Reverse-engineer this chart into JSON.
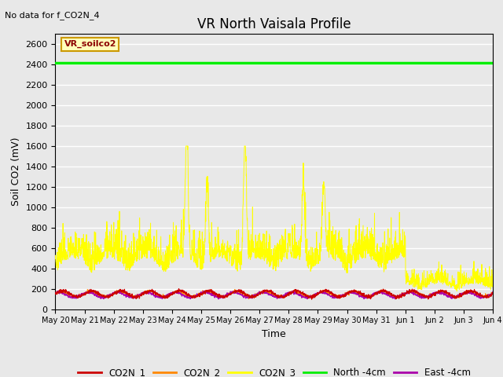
{
  "title": "VR North Vaisala Profile",
  "subtitle": "No data for f_CO2N_4",
  "ylabel": "Soil CO2 (mV)",
  "xlabel": "Time",
  "annotation": "VR_soilco2",
  "ylim": [
    0,
    2700
  ],
  "yticks": [
    0,
    200,
    400,
    600,
    800,
    1000,
    1200,
    1400,
    1600,
    1800,
    2000,
    2200,
    2400,
    2600
  ],
  "bg_color": "#e8e8e8",
  "north_line_value": 2420,
  "north_line_color": "#00ee00",
  "co2n1_color": "#cc0000",
  "co2n2_color": "#ff8800",
  "co2n3_color": "#ffff00",
  "east_color": "#aa00aa",
  "legend_entries": [
    "CO2N_1",
    "CO2N_2",
    "CO2N_3",
    "North -4cm",
    "East -4cm"
  ],
  "legend_colors": [
    "#cc0000",
    "#ff8800",
    "#ffff00",
    "#00ee00",
    "#aa00aa"
  ],
  "x_tick_labels": [
    "May 20",
    "May 21",
    "May 22",
    "May 23",
    "May 24",
    "May 25",
    "May 26",
    "May 27",
    "May 28",
    "May 29",
    "May 30",
    "May 31",
    "Jun 1",
    "Jun 2",
    "Jun 3",
    "Jun 4"
  ]
}
